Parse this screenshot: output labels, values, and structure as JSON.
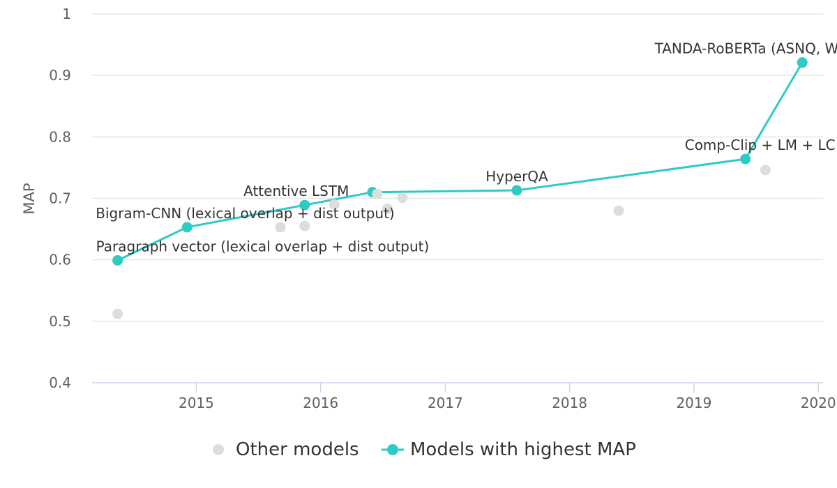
{
  "chart_data": {
    "type": "scatter",
    "ylabel": "MAP",
    "xlabel": "",
    "xlim": [
      "2014-03-01",
      "2020-01-15"
    ],
    "ylim": [
      0.4,
      1.0
    ],
    "x_ticks": [
      "2015",
      "2016",
      "2017",
      "2018",
      "2019",
      "2020"
    ],
    "y_ticks": [
      "0.4",
      "0.5",
      "0.6",
      "0.7",
      "0.8",
      "0.9",
      "1"
    ],
    "grid": true,
    "legend_position": "bottom",
    "colors": {
      "other": "#dddddd",
      "best": "#2ecbc4",
      "grid": "#e6e6e6",
      "axis": "#ccd6eb"
    },
    "series": [
      {
        "name": "Other models",
        "points": [
          {
            "x": "2014-05-15",
            "y": 0.512
          },
          {
            "x": "2015-09-05",
            "y": 0.653
          },
          {
            "x": "2015-11-15",
            "y": 0.655
          },
          {
            "x": "2016-02-10",
            "y": 0.69
          },
          {
            "x": "2016-06-15",
            "y": 0.707
          },
          {
            "x": "2016-07-15",
            "y": 0.683
          },
          {
            "x": "2016-08-28",
            "y": 0.701
          },
          {
            "x": "2018-05-25",
            "y": 0.68
          },
          {
            "x": "2019-07-30",
            "y": 0.746
          }
        ]
      },
      {
        "name": "Models with highest MAP",
        "points": [
          {
            "x": "2014-05-15",
            "y": 0.599,
            "label": "Paragraph vector (lexical overlap + dist output)"
          },
          {
            "x": "2014-12-05",
            "y": 0.653,
            "label": "Bigram-CNN (lexical overlap + dist output)"
          },
          {
            "x": "2015-11-15",
            "y": 0.689,
            "label": "Attentive LSTM"
          },
          {
            "x": "2016-06-01",
            "y": 0.71,
            "label": ""
          },
          {
            "x": "2017-07-30",
            "y": 0.713,
            "label": "HyperQA"
          },
          {
            "x": "2019-06-01",
            "y": 0.764,
            "label": "Comp-Clip + LM + LC"
          },
          {
            "x": "2019-11-15",
            "y": 0.921,
            "label": "TANDA-RoBERTa (ASNQ, WikiQA)"
          }
        ]
      }
    ]
  }
}
